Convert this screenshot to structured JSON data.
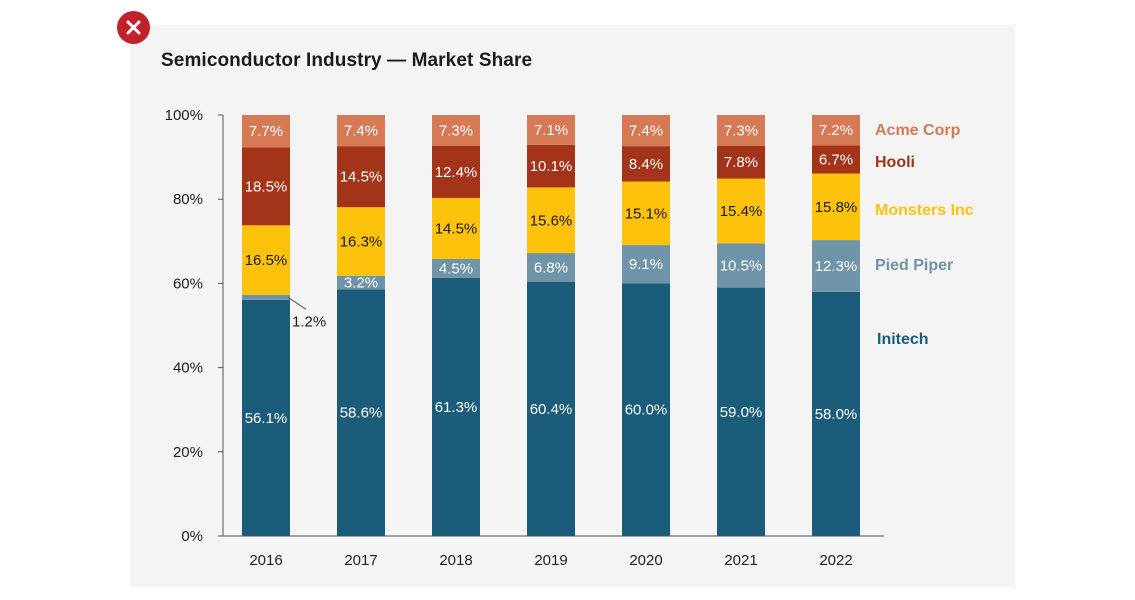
{
  "close_button": {
    "icon": "close-icon",
    "color": "#c2202b"
  },
  "chart_data": {
    "type": "bar",
    "stacked": true,
    "title": "Semiconductor Industry — Market Share",
    "xlabel": "",
    "ylabel": "",
    "ylim": [
      0,
      100
    ],
    "yticks": [
      "0%",
      "20%",
      "40%",
      "60%",
      "80%",
      "100%"
    ],
    "grid": false,
    "legend_position": "right",
    "categories": [
      "2016",
      "2017",
      "2018",
      "2019",
      "2020",
      "2021",
      "2022"
    ],
    "series": [
      {
        "name": "Initech",
        "color": "#1a5c7a",
        "text_color": "#ffffff",
        "values": [
          56.1,
          58.6,
          61.3,
          60.4,
          60.0,
          59.0,
          58.0
        ],
        "labels": [
          "56.1%",
          "58.6%",
          "61.3%",
          "60.4%",
          "60.0%",
          "59.0%",
          "58.0%"
        ]
      },
      {
        "name": "Pied Piper",
        "color": "#6f94a8",
        "text_color": "#ffffff",
        "values": [
          1.2,
          3.2,
          4.5,
          6.8,
          9.1,
          10.5,
          12.3
        ],
        "labels": [
          "1.2%",
          "3.2%",
          "4.5%",
          "6.8%",
          "9.1%",
          "10.5%",
          "12.3%"
        ]
      },
      {
        "name": "Monsters Inc",
        "color": "#fcc20c",
        "text_color": "#1b1b1b",
        "values": [
          16.5,
          16.3,
          14.5,
          15.6,
          15.1,
          15.4,
          15.8
        ],
        "labels": [
          "16.5%",
          "16.3%",
          "14.5%",
          "15.6%",
          "15.1%",
          "15.4%",
          "15.8%"
        ]
      },
      {
        "name": "Hooli",
        "color": "#a3341a",
        "text_color": "#ffffff",
        "values": [
          18.5,
          14.5,
          12.4,
          10.1,
          8.4,
          7.8,
          6.7
        ],
        "labels": [
          "18.5%",
          "14.5%",
          "12.4%",
          "10.1%",
          "8.4%",
          "7.8%",
          "6.7%"
        ]
      },
      {
        "name": "Acme Corp",
        "color": "#d57a55",
        "text_color": "#ffffff",
        "values": [
          7.7,
          7.4,
          7.3,
          7.1,
          7.4,
          7.3,
          7.2
        ],
        "labels": [
          "7.7%",
          "7.4%",
          "7.3%",
          "7.1%",
          "7.4%",
          "7.3%",
          "7.2%"
        ]
      }
    ]
  }
}
